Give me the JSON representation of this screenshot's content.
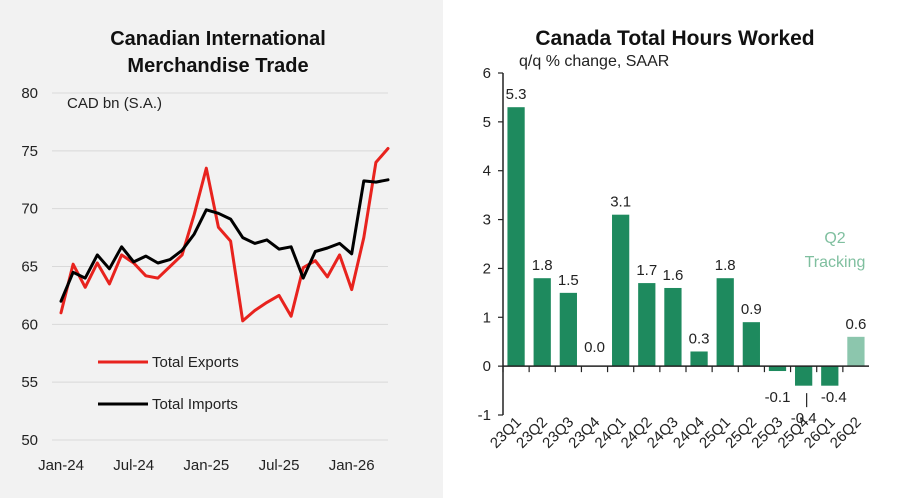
{
  "charts": {
    "trade": {
      "title_line1": "Canadian International",
      "title_line2": "Merchandise Trade",
      "unit_label": "CAD bn (S.A.)"
    },
    "hours": {
      "title": "Canada Total Hours Worked",
      "subtitle": "q/q % change, SAAR",
      "annotation_line1": "Q2",
      "annotation_line2": "Tracking"
    }
  },
  "chart_data": [
    {
      "type": "line",
      "title": "Canadian International Merchandise Trade",
      "ylabel": "CAD bn (S.A.)",
      "ylim": [
        50,
        80
      ],
      "yticks": [
        50,
        55,
        60,
        65,
        70,
        75,
        80
      ],
      "xtick_labels": [
        "Jan-24",
        "Jul-24",
        "Jan-25",
        "Jul-25",
        "Jan-26"
      ],
      "grid": true,
      "legend_position": "bottom-left",
      "x": [
        "2024-01",
        "2024-02",
        "2024-03",
        "2024-04",
        "2024-05",
        "2024-06",
        "2024-07",
        "2024-08",
        "2024-09",
        "2024-10",
        "2024-11",
        "2024-12",
        "2025-01",
        "2025-02",
        "2025-03",
        "2025-04",
        "2025-05",
        "2025-06",
        "2025-07",
        "2025-08",
        "2025-09",
        "2025-10",
        "2025-11",
        "2025-12",
        "2026-01",
        "2026-02",
        "2026-03",
        "2026-04"
      ],
      "series": [
        {
          "name": "Total Exports",
          "color": "#e8231e",
          "values": [
            61.0,
            65.2,
            63.2,
            65.3,
            63.5,
            66.0,
            65.3,
            64.2,
            64.0,
            65.0,
            66.0,
            69.5,
            73.5,
            68.4,
            67.2,
            60.3,
            61.2,
            61.9,
            62.5,
            60.7,
            64.9,
            65.5,
            64.1,
            66.0,
            63.0,
            67.5,
            74.0,
            75.2
          ]
        },
        {
          "name": "Total Imports",
          "color": "#000000",
          "values": [
            62.0,
            64.5,
            64.0,
            66.0,
            64.8,
            66.7,
            65.4,
            65.9,
            65.3,
            65.6,
            66.4,
            67.8,
            69.9,
            69.6,
            69.1,
            67.5,
            67.0,
            67.3,
            66.5,
            66.7,
            64.0,
            66.3,
            66.6,
            67.0,
            66.1,
            72.4,
            72.3,
            72.5
          ]
        }
      ]
    },
    {
      "type": "bar",
      "title": "Canada Total Hours Worked",
      "subtitle": "q/q % change, SAAR",
      "ylim": [
        -1,
        6
      ],
      "yticks": [
        -1,
        0,
        1,
        2,
        3,
        4,
        5,
        6
      ],
      "categories": [
        "23Q1",
        "23Q2",
        "23Q3",
        "23Q4",
        "24Q1",
        "24Q2",
        "24Q3",
        "24Q4",
        "25Q1",
        "25Q2",
        "25Q3",
        "25Q4",
        "26Q1",
        "26Q2"
      ],
      "values": [
        5.3,
        1.8,
        1.5,
        0.0,
        3.1,
        1.7,
        1.6,
        0.3,
        1.8,
        0.9,
        -0.1,
        -0.4,
        -0.4,
        0.6
      ],
      "value_labels": [
        "5.3",
        "1.8",
        "1.5",
        "0.0",
        "3.1",
        "1.7",
        "1.6",
        "0.3",
        "1.8",
        "0.9",
        "-0.1",
        "-0.4",
        "-0.4",
        "0.6"
      ],
      "colors": {
        "actual": "#1e8a5e",
        "tracking": "#8cc6ad"
      },
      "tracking_category": "26Q2"
    }
  ]
}
